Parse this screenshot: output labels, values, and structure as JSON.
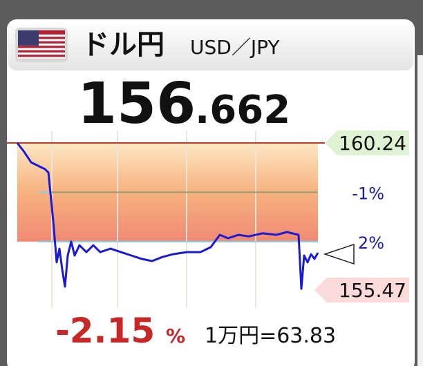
{
  "header": {
    "title": "ドル円",
    "pair": "USD／JPY"
  },
  "price": {
    "integer": "156",
    "decimal": ".662"
  },
  "footer": {
    "change": "-2.15",
    "change_unit": "%",
    "conversion": "1万円=63.83"
  },
  "chart_data": {
    "type": "line",
    "color": "#1a1ad6",
    "x": [
      0,
      10,
      20,
      30,
      40,
      45,
      48,
      52,
      57,
      61,
      65,
      69,
      73,
      78,
      83,
      90,
      100,
      110,
      120,
      135,
      150,
      165,
      180,
      195,
      210,
      225,
      245,
      265,
      280,
      293,
      305,
      320,
      335,
      355,
      375,
      390,
      407,
      411,
      415,
      420,
      425,
      430,
      435
    ],
    "values": [
      160.24,
      159.95,
      159.61,
      159.5,
      159.39,
      159.28,
      158.61,
      157.71,
      156.37,
      156.81,
      156.14,
      155.58,
      156.59,
      157.04,
      156.59,
      156.92,
      156.7,
      156.92,
      156.7,
      156.81,
      156.7,
      156.59,
      156.48,
      156.41,
      156.54,
      156.63,
      156.7,
      156.7,
      156.86,
      157.26,
      157.15,
      157.26,
      157.21,
      157.31,
      157.26,
      157.35,
      157.26,
      155.51,
      156.59,
      156.37,
      156.63,
      156.48,
      156.68
    ],
    "xlim": [
      0,
      435
    ],
    "ylim": [
      154.91,
      160.62
    ],
    "high": 160.24,
    "low": 155.47,
    "levels": [
      {
        "label": "-1%",
        "value": 158.64
      },
      {
        "label": "2%",
        "value": 157.04
      }
    ]
  }
}
